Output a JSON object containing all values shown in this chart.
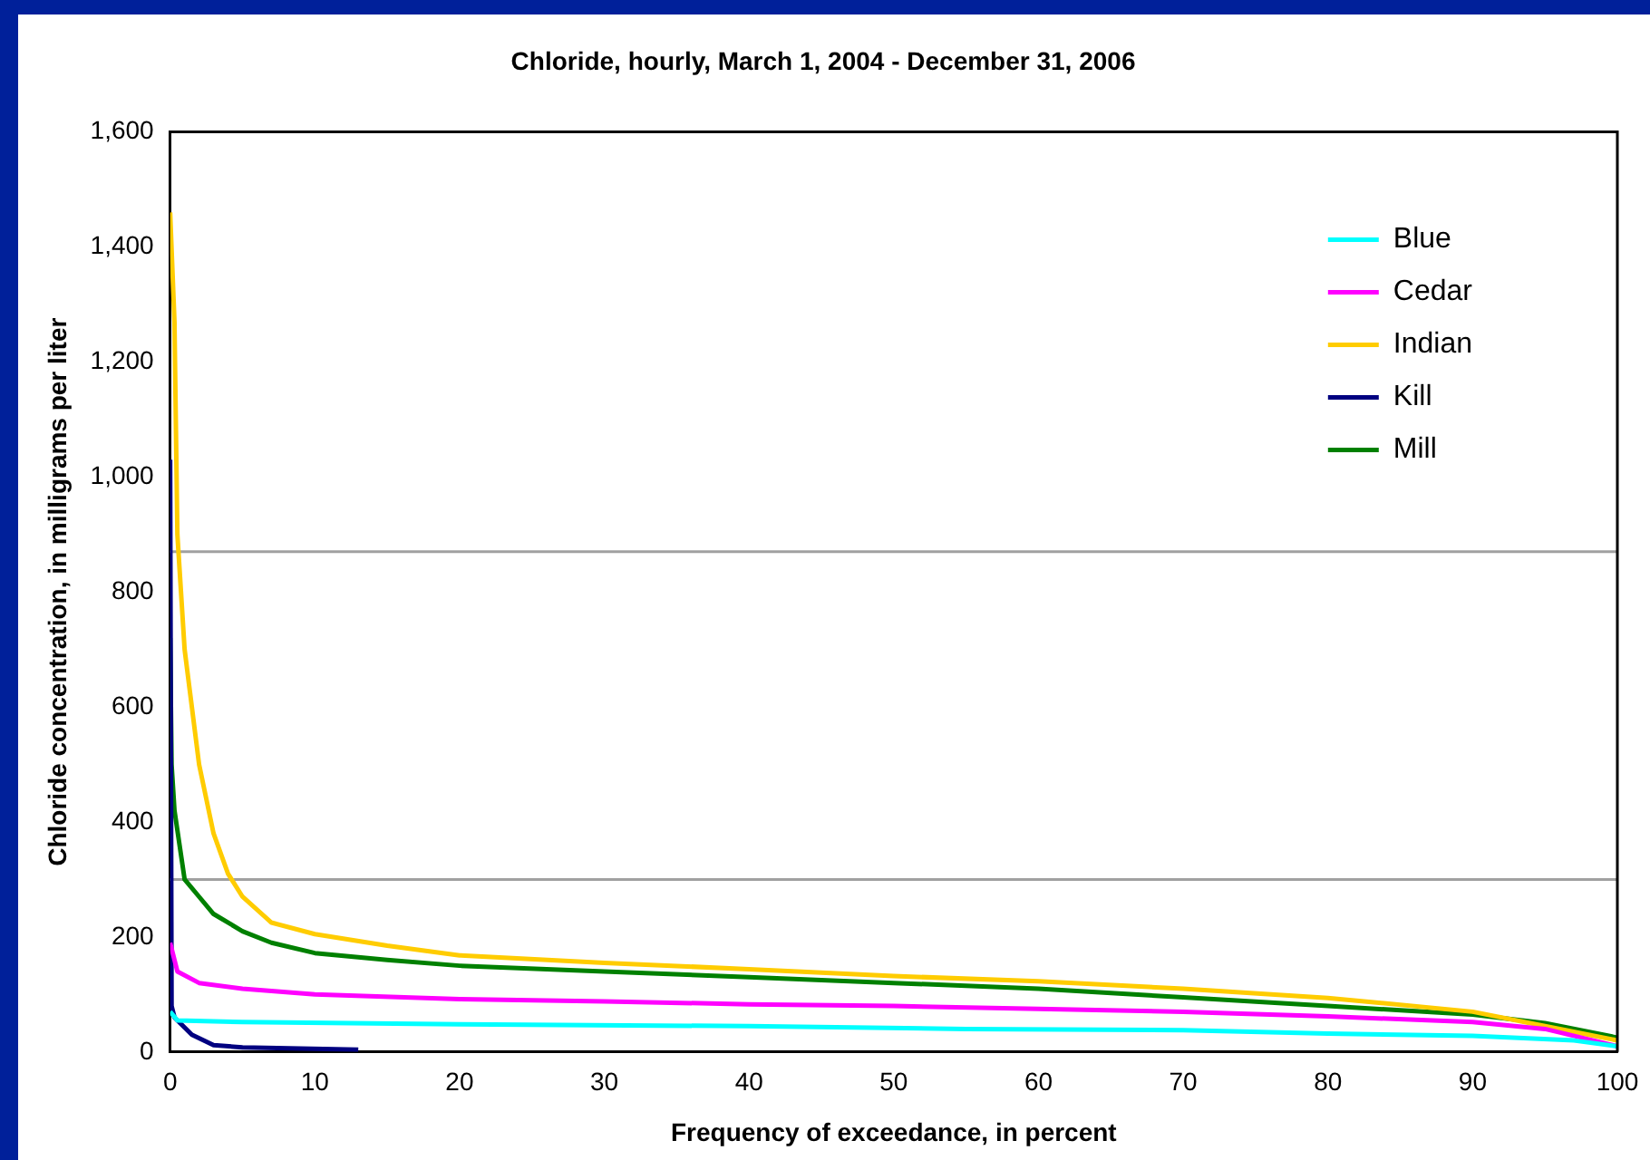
{
  "chart_data": {
    "type": "line",
    "title": "Chloride, hourly, March 1, 2004 - December 31, 2006",
    "xlabel": "Frequency of exceedance, in percent",
    "ylabel": "Chloride concentration, in milligrams per liter",
    "xlim": [
      0,
      100
    ],
    "xticks": [
      0,
      10,
      20,
      30,
      40,
      50,
      60,
      70,
      80,
      90,
      100
    ],
    "ylim": [
      0,
      1600
    ],
    "yticks": [
      0,
      200,
      400,
      600,
      800,
      {
        "value": 1000,
        "label": "1,000"
      },
      {
        "value": 1200,
        "label": "1,200"
      },
      {
        "value": 1400,
        "label": "1,400"
      },
      {
        "value": 1600,
        "label": "1,600"
      }
    ],
    "grid": false,
    "legend": "top right",
    "marker": "none",
    "line_style": "solid",
    "ref_lines": [
      {
        "axis": "y",
        "value": 870,
        "color": "#a0a0a0"
      },
      {
        "axis": "y",
        "value": 300,
        "color": "#a0a0a0"
      }
    ],
    "series": [
      {
        "name": "Blue",
        "color": "#00ffff",
        "x": [
          0,
          0.5,
          5,
          20,
          40,
          55,
          70,
          80,
          90,
          97,
          100
        ],
        "values": [
          70,
          55,
          52,
          48,
          45,
          40,
          38,
          32,
          28,
          20,
          10
        ]
      },
      {
        "name": "Cedar",
        "color": "#ff00ff",
        "x": [
          0,
          0.5,
          2,
          5,
          10,
          20,
          30,
          40,
          50,
          60,
          70,
          80,
          90,
          95,
          100
        ],
        "values": [
          190,
          140,
          120,
          110,
          100,
          92,
          88,
          83,
          80,
          75,
          70,
          62,
          52,
          40,
          10
        ]
      },
      {
        "name": "Indian",
        "color": "#ffcc00",
        "x": [
          0,
          0.3,
          0.5,
          1,
          2,
          3,
          4,
          5,
          7,
          10,
          15,
          20,
          30,
          40,
          50,
          60,
          70,
          80,
          90,
          95,
          100
        ],
        "values": [
          1460,
          1270,
          900,
          700,
          500,
          380,
          310,
          270,
          225,
          205,
          185,
          168,
          155,
          144,
          132,
          123,
          110,
          94,
          70,
          45,
          20
        ]
      },
      {
        "name": "Kill",
        "color": "#000080",
        "x": [
          0,
          0.1,
          0.3,
          1.5,
          3,
          5,
          13
        ],
        "values": [
          1030,
          80,
          60,
          30,
          12,
          8,
          4
        ]
      },
      {
        "name": "Mill",
        "color": "#008000",
        "x": [
          0,
          0.1,
          0.3,
          1,
          2,
          3,
          5,
          7,
          10,
          15,
          20,
          30,
          40,
          50,
          60,
          70,
          80,
          90,
          95,
          100
        ],
        "values": [
          720,
          500,
          420,
          300,
          270,
          240,
          210,
          190,
          172,
          160,
          150,
          140,
          130,
          120,
          110,
          95,
          80,
          65,
          50,
          25
        ]
      }
    ]
  }
}
